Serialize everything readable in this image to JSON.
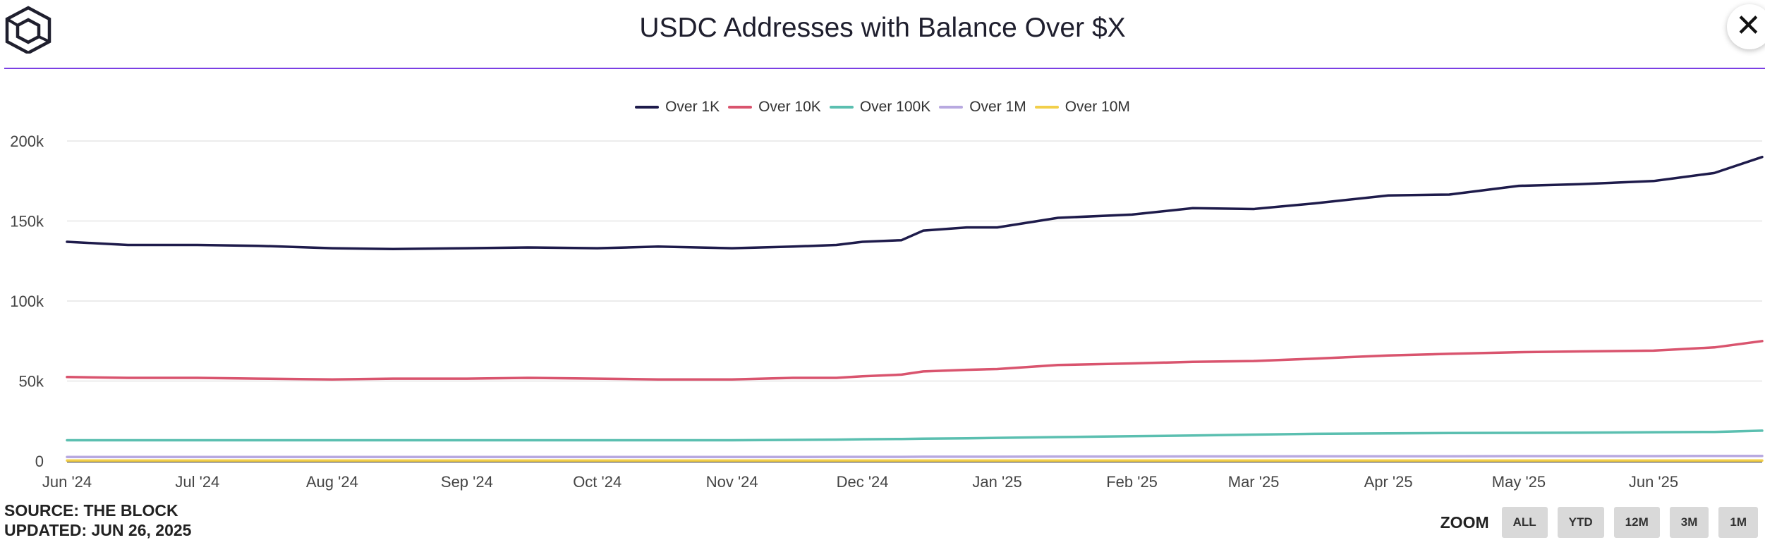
{
  "header": {
    "title": "USDC Addresses with Balance Over $X"
  },
  "footer": {
    "source": "SOURCE: THE BLOCK",
    "updated": "UPDATED: JUN 26, 2025"
  },
  "zoom": {
    "label": "ZOOM",
    "buttons": [
      "ALL",
      "YTD",
      "12M",
      "3M",
      "1M"
    ]
  },
  "legend": [
    {
      "name": "Over 1K",
      "color": "#1e1b4b"
    },
    {
      "name": "Over 10K",
      "color": "#d9546e"
    },
    {
      "name": "Over 100K",
      "color": "#5bbfb0"
    },
    {
      "name": "Over 1M",
      "color": "#b8a9e0"
    },
    {
      "name": "Over 10M",
      "color": "#f2cf4a"
    }
  ],
  "chart_data": {
    "type": "line",
    "title": "USDC Addresses with Balance Over $X",
    "x_tick_labels": [
      "Jun '24",
      "Jul '24",
      "Aug '24",
      "Sep '24",
      "Oct '24",
      "Nov '24",
      "Dec '24",
      "Jan '25",
      "Feb '25",
      "Mar '25",
      "Apr '25",
      "May '25",
      "Jun '25"
    ],
    "y_tick_labels": [
      "0",
      "50k",
      "100k",
      "150k",
      "200k"
    ],
    "ylim": [
      0,
      200000
    ],
    "grid": true,
    "legend_position": "top-center",
    "x_dates": [
      "2024-06-01",
      "2024-06-15",
      "2024-07-01",
      "2024-07-15",
      "2024-08-01",
      "2024-08-15",
      "2024-09-01",
      "2024-09-15",
      "2024-10-01",
      "2024-10-15",
      "2024-11-01",
      "2024-11-15",
      "2024-11-25",
      "2024-12-01",
      "2024-12-10",
      "2024-12-15",
      "2024-12-25",
      "2025-01-01",
      "2025-01-15",
      "2025-02-01",
      "2025-02-15",
      "2025-03-01",
      "2025-03-15",
      "2025-04-01",
      "2025-04-15",
      "2025-05-01",
      "2025-05-15",
      "2025-06-01",
      "2025-06-15",
      "2025-06-26"
    ],
    "series": [
      {
        "name": "Over 1K",
        "color": "#1e1b4b",
        "values": [
          137000,
          135000,
          135000,
          134500,
          133000,
          132500,
          133000,
          133500,
          133000,
          134000,
          133000,
          134000,
          135000,
          137000,
          138000,
          144000,
          146000,
          146000,
          152000,
          154000,
          158000,
          157500,
          161000,
          166000,
          166500,
          172000,
          173000,
          175000,
          180000,
          190000
        ]
      },
      {
        "name": "Over 10K",
        "color": "#d9546e",
        "values": [
          52500,
          52000,
          52000,
          51500,
          51000,
          51500,
          51500,
          52000,
          51500,
          51000,
          51000,
          52000,
          52000,
          53000,
          54000,
          56000,
          57000,
          57500,
          60000,
          61000,
          62000,
          62500,
          64000,
          66000,
          67000,
          68000,
          68500,
          69000,
          71000,
          75000
        ]
      },
      {
        "name": "Over 100K",
        "color": "#5bbfb0",
        "values": [
          13000,
          13000,
          13000,
          13000,
          13000,
          13000,
          13000,
          13000,
          13000,
          13000,
          13000,
          13200,
          13400,
          13600,
          13800,
          14000,
          14200,
          14500,
          15000,
          15500,
          16000,
          16500,
          17000,
          17300,
          17500,
          17600,
          17700,
          18000,
          18200,
          19000
        ]
      },
      {
        "name": "Over 1M",
        "color": "#b8a9e0",
        "values": [
          2500,
          2500,
          2500,
          2500,
          2500,
          2500,
          2500,
          2500,
          2500,
          2500,
          2500,
          2500,
          2600,
          2600,
          2600,
          2700,
          2700,
          2700,
          2800,
          2800,
          2900,
          2900,
          3000,
          3000,
          3000,
          3100,
          3100,
          3100,
          3200,
          3200
        ]
      },
      {
        "name": "Over 10M",
        "color": "#f2cf4a",
        "values": [
          300,
          300,
          300,
          300,
          300,
          300,
          300,
          300,
          300,
          300,
          300,
          300,
          300,
          300,
          300,
          300,
          300,
          300,
          300,
          300,
          300,
          300,
          300,
          300,
          300,
          300,
          300,
          300,
          300,
          300
        ]
      }
    ]
  }
}
